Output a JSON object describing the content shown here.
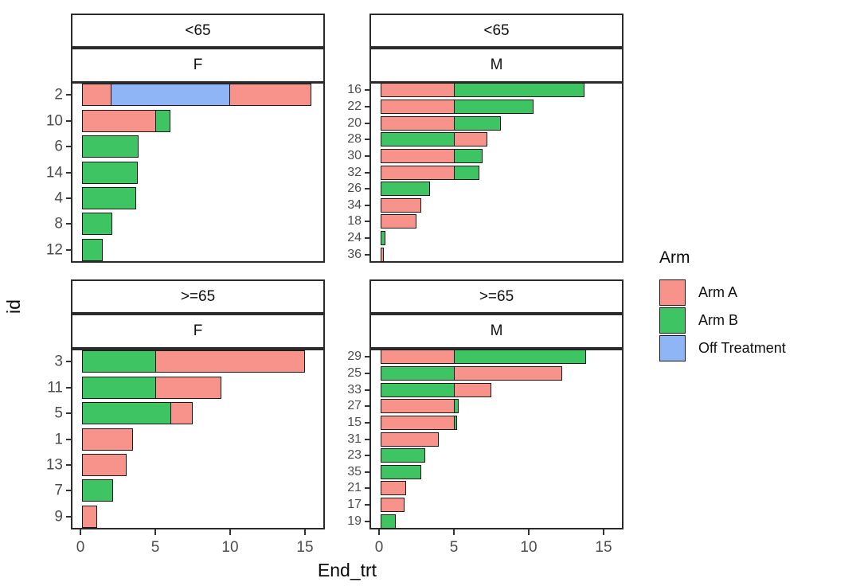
{
  "chart_data": {
    "type": "bar",
    "orientation": "horizontal",
    "stacked": true,
    "faceted_by": [
      "age_group",
      "sex"
    ],
    "xlabel": "End_trt",
    "ylabel": "id",
    "xlim": [
      0,
      16.3
    ],
    "x_ticks": [
      0,
      5,
      10,
      15
    ],
    "x_tick_labels": [
      "0",
      "5",
      "10",
      "15"
    ],
    "grid": "off",
    "legend": {
      "title": "Arm",
      "position": "right",
      "entries": [
        {
          "label": "Arm A",
          "color": "#F8938C"
        },
        {
          "label": "Arm B",
          "color": "#3EC462"
        },
        {
          "label": "Off Treatment",
          "color": "#8FB5F7"
        }
      ]
    },
    "facets": [
      {
        "age": "<65",
        "sex": "F",
        "bars": [
          {
            "id": "2",
            "segments": [
              {
                "arm": "Arm A",
                "value": 2
              },
              {
                "arm": "Off Treatment",
                "value": 8
              },
              {
                "arm": "Arm A",
                "value": 5.5
              }
            ]
          },
          {
            "id": "10",
            "segments": [
              {
                "arm": "Arm A",
                "value": 5
              },
              {
                "arm": "Arm B",
                "value": 1
              }
            ]
          },
          {
            "id": "6",
            "segments": [
              {
                "arm": "Arm B",
                "value": 3.8
              }
            ]
          },
          {
            "id": "14",
            "segments": [
              {
                "arm": "Arm B",
                "value": 3.7
              }
            ]
          },
          {
            "id": "4",
            "segments": [
              {
                "arm": "Arm B",
                "value": 3.6
              }
            ]
          },
          {
            "id": "8",
            "segments": [
              {
                "arm": "Arm B",
                "value": 2
              }
            ]
          },
          {
            "id": "12",
            "segments": [
              {
                "arm": "Arm B",
                "value": 1.4
              }
            ]
          }
        ]
      },
      {
        "age": "<65",
        "sex": "M",
        "bars": [
          {
            "id": "16",
            "segments": [
              {
                "arm": "Arm A",
                "value": 5
              },
              {
                "arm": "Arm B",
                "value": 8.7
              }
            ]
          },
          {
            "id": "22",
            "segments": [
              {
                "arm": "Arm A",
                "value": 5
              },
              {
                "arm": "Arm B",
                "value": 5.3
              }
            ]
          },
          {
            "id": "20",
            "segments": [
              {
                "arm": "Arm A",
                "value": 5
              },
              {
                "arm": "Arm B",
                "value": 3.1
              }
            ]
          },
          {
            "id": "28",
            "segments": [
              {
                "arm": "Arm B",
                "value": 5
              },
              {
                "arm": "Arm A",
                "value": 2.2
              }
            ]
          },
          {
            "id": "30",
            "segments": [
              {
                "arm": "Arm A",
                "value": 5
              },
              {
                "arm": "Arm B",
                "value": 1.9
              }
            ]
          },
          {
            "id": "32",
            "segments": [
              {
                "arm": "Arm A",
                "value": 5
              },
              {
                "arm": "Arm B",
                "value": 1.7
              }
            ]
          },
          {
            "id": "26",
            "segments": [
              {
                "arm": "Arm B",
                "value": 3.3
              }
            ]
          },
          {
            "id": "34",
            "segments": [
              {
                "arm": "Arm A",
                "value": 2.7
              }
            ]
          },
          {
            "id": "18",
            "segments": [
              {
                "arm": "Arm A",
                "value": 2.4
              }
            ]
          },
          {
            "id": "24",
            "segments": [
              {
                "arm": "Arm B",
                "value": 0.3
              }
            ]
          },
          {
            "id": "36",
            "segments": [
              {
                "arm": "Arm A",
                "value": 0.2
              }
            ]
          }
        ]
      },
      {
        "age": ">=65",
        "sex": "F",
        "bars": [
          {
            "id": "3",
            "segments": [
              {
                "arm": "Arm B",
                "value": 5
              },
              {
                "arm": "Arm A",
                "value": 10
              }
            ]
          },
          {
            "id": "11",
            "segments": [
              {
                "arm": "Arm B",
                "value": 5
              },
              {
                "arm": "Arm A",
                "value": 4.4
              }
            ]
          },
          {
            "id": "5",
            "segments": [
              {
                "arm": "Arm B",
                "value": 6
              },
              {
                "arm": "Arm A",
                "value": 1.5
              }
            ]
          },
          {
            "id": "1",
            "segments": [
              {
                "arm": "Arm A",
                "value": 3.4
              }
            ]
          },
          {
            "id": "13",
            "segments": [
              {
                "arm": "Arm A",
                "value": 3
              }
            ]
          },
          {
            "id": "7",
            "segments": [
              {
                "arm": "Arm B",
                "value": 2.1
              }
            ]
          },
          {
            "id": "9",
            "segments": [
              {
                "arm": "Arm A",
                "value": 1
              }
            ]
          }
        ]
      },
      {
        "age": ">=65",
        "sex": "M",
        "bars": [
          {
            "id": "29",
            "segments": [
              {
                "arm": "Arm A",
                "value": 5
              },
              {
                "arm": "Arm B",
                "value": 8.8
              }
            ]
          },
          {
            "id": "25",
            "segments": [
              {
                "arm": "Arm B",
                "value": 5
              },
              {
                "arm": "Arm A",
                "value": 7.2
              }
            ]
          },
          {
            "id": "33",
            "segments": [
              {
                "arm": "Arm B",
                "value": 5
              },
              {
                "arm": "Arm A",
                "value": 2.5
              }
            ]
          },
          {
            "id": "27",
            "segments": [
              {
                "arm": "Arm A",
                "value": 5
              },
              {
                "arm": "Arm B",
                "value": 0.3
              }
            ]
          },
          {
            "id": "15",
            "segments": [
              {
                "arm": "Arm A",
                "value": 5
              },
              {
                "arm": "Arm B",
                "value": 0.2
              }
            ]
          },
          {
            "id": "31",
            "segments": [
              {
                "arm": "Arm A",
                "value": 3.9
              }
            ]
          },
          {
            "id": "23",
            "segments": [
              {
                "arm": "Arm B",
                "value": 3
              }
            ]
          },
          {
            "id": "35",
            "segments": [
              {
                "arm": "Arm B",
                "value": 2.7
              }
            ]
          },
          {
            "id": "21",
            "segments": [
              {
                "arm": "Arm A",
                "value": 1.7
              }
            ]
          },
          {
            "id": "17",
            "segments": [
              {
                "arm": "Arm A",
                "value": 1.6
              }
            ]
          },
          {
            "id": "19",
            "segments": [
              {
                "arm": "Arm B",
                "value": 1
              }
            ]
          }
        ]
      }
    ]
  }
}
